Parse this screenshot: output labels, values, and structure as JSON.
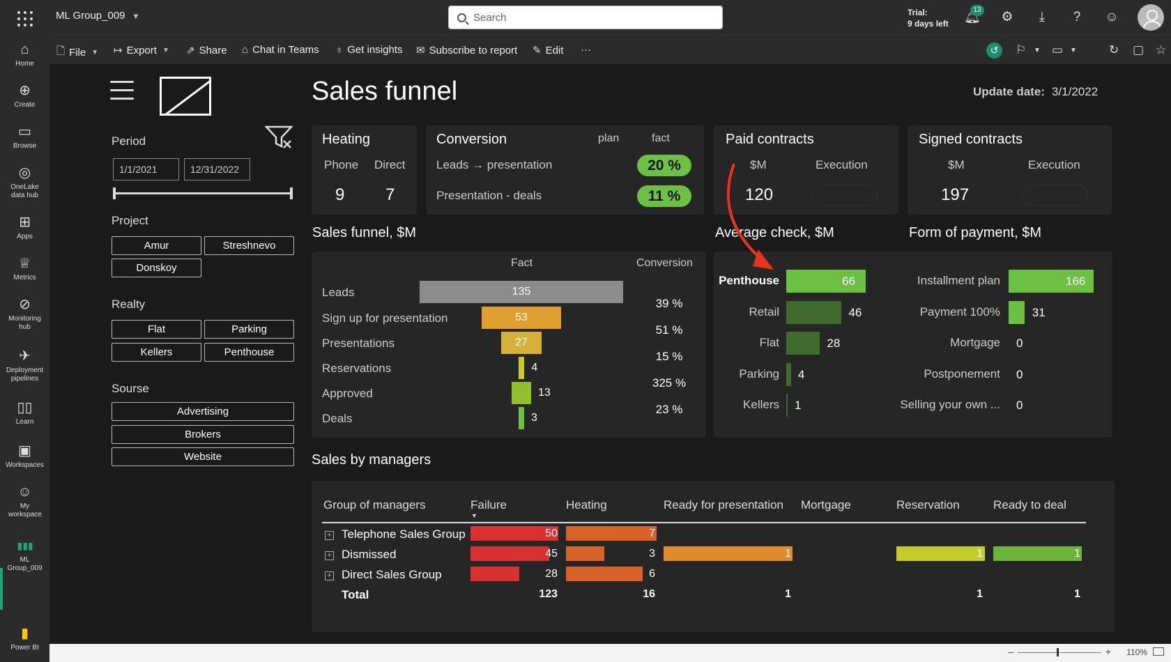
{
  "topbar": {
    "workspace": "ML Group_009",
    "search_placeholder": "Search",
    "trial_line1": "Trial:",
    "trial_line2": "9 days left",
    "notification_count": "13"
  },
  "rail": [
    {
      "label": "Home",
      "icon": "⌂"
    },
    {
      "label": "Create",
      "icon": "⊕"
    },
    {
      "label": "Browse",
      "icon": "▭"
    },
    {
      "label": "OneLake data hub",
      "icon": "◎"
    },
    {
      "label": "Apps",
      "icon": "⊞"
    },
    {
      "label": "Metrics",
      "icon": "♕"
    },
    {
      "label": "Monitoring hub",
      "icon": "⊘"
    },
    {
      "label": "Deployment pipelines",
      "icon": "✈"
    },
    {
      "label": "Learn",
      "icon": "▯▯"
    },
    {
      "label": "Workspaces",
      "icon": "▣"
    },
    {
      "label": "My workspace",
      "icon": "☺"
    },
    {
      "label": "ML Group_009",
      "icon": "▮▮▮"
    },
    {
      "label": "Power BI",
      "icon": "▮"
    }
  ],
  "menu": {
    "file": "File",
    "export": "Export",
    "share": "Share",
    "chat": "Chat in Teams",
    "insights": "Get insights",
    "subscribe": "Subscribe to report",
    "edit": "Edit",
    "more": "···"
  },
  "report": {
    "title": "Sales funnel",
    "update_label": "Update date:",
    "update_date": "3/1/2022"
  },
  "filters": {
    "period_label": "Period",
    "date_from": "1/1/2021",
    "date_to": "12/31/2022",
    "project_label": "Project",
    "projects": [
      "Amur",
      "Streshnevo",
      "Donskoy"
    ],
    "realty_label": "Realty",
    "realty": [
      "Flat",
      "Parking",
      "Kellers",
      "Penthouse"
    ],
    "source_label": "Sourse",
    "sources": [
      "Advertising",
      "Brokers",
      "Website"
    ]
  },
  "kpi": {
    "heating": {
      "title": "Heating",
      "phone_label": "Phone",
      "direct_label": "Direct",
      "phone": "9",
      "direct": "7"
    },
    "conversion": {
      "title": "Conversion",
      "plan_label": "plan",
      "fact_label": "fact",
      "row1_label": "Leads → presentation",
      "row1_fact": "20 %",
      "row2_label": "Presentation - deals",
      "row2_fact": "11 %"
    },
    "paid": {
      "title": "Paid contracts",
      "sm_label": "$M",
      "exec_label": "Execution",
      "value": "120"
    },
    "signed": {
      "title": "Signed contracts",
      "sm_label": "$M",
      "exec_label": "Execution",
      "value": "197"
    }
  },
  "funnel": {
    "title": "Sales funnel, $M",
    "fact_label": "Fact",
    "conv_label": "Conversion",
    "rows": [
      {
        "label": "Leads",
        "value": 135,
        "color": "#8c8c8c"
      },
      {
        "label": "Sign up for presentation",
        "value": 53,
        "color": "#e0a030"
      },
      {
        "label": "Presentations",
        "value": 27,
        "color": "#d6b13a"
      },
      {
        "label": "Reservations",
        "value": 4,
        "color": "#c9c92e"
      },
      {
        "label": "Approved",
        "value": 13,
        "color": "#8fbf2f"
      },
      {
        "label": "Deals",
        "value": 3,
        "color": "#6cc043"
      }
    ],
    "conversions": [
      "39 %",
      "51 %",
      "15 %",
      "325 %",
      "23 %"
    ]
  },
  "avg_check": {
    "title": "Average check, $M",
    "max": 66,
    "rows": [
      {
        "label": "Penthouse",
        "value": 66,
        "color": "#6cc043"
      },
      {
        "label": "Retail",
        "value": 46,
        "color": "#3f6b2c"
      },
      {
        "label": "Flat",
        "value": 28,
        "color": "#3f6b2c"
      },
      {
        "label": "Parking",
        "value": 4,
        "color": "#3f6b2c"
      },
      {
        "label": "Kellers",
        "value": 1,
        "color": "#3f6b2c"
      }
    ]
  },
  "payment": {
    "title": "Form of payment, $M",
    "max": 166,
    "rows": [
      {
        "label": "Installment plan",
        "value": 166,
        "color": "#6cc043"
      },
      {
        "label": "Payment 100%",
        "value": 31,
        "color": "#6cc043"
      },
      {
        "label": "Mortgage",
        "value": 0,
        "color": "#6cc043"
      },
      {
        "label": "Postponement",
        "value": 0,
        "color": "#6cc043"
      },
      {
        "label": "Selling your own ...",
        "value": 0,
        "color": "#6cc043"
      }
    ]
  },
  "managers": {
    "title": "Sales by managers",
    "headers": [
      "Group of managers",
      "Failure",
      "Heating",
      "Ready for presentation",
      "Mortgage",
      "Reservation",
      "Ready to deal"
    ],
    "rows": [
      {
        "label": "Telephone Sales Group",
        "failure": "50",
        "heating": "7",
        "ready": "",
        "mortgage": "",
        "reservation": "",
        "deal": ""
      },
      {
        "label": "Dismissed",
        "failure": "45",
        "heating": "3",
        "ready": "1",
        "mortgage": "",
        "reservation": "1",
        "deal": "1"
      },
      {
        "label": "Direct Sales Group",
        "failure": "28",
        "heating": "6",
        "ready": "",
        "mortgage": "",
        "reservation": "",
        "deal": ""
      }
    ],
    "total": {
      "label": "Total",
      "failure": "123",
      "heating": "16",
      "ready": "1",
      "mortgage": "",
      "reservation": "1",
      "deal": "1"
    }
  },
  "status": {
    "zoom": "110%"
  }
}
